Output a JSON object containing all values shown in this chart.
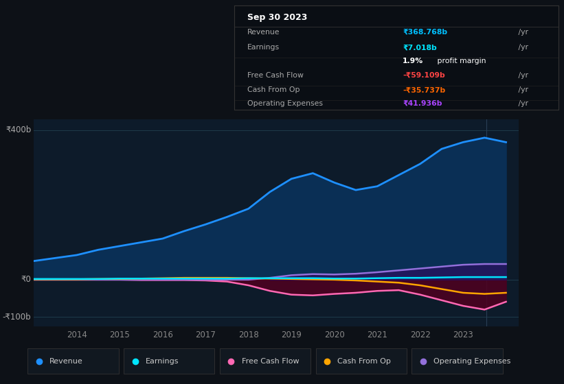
{
  "bg_color": "#0d1117",
  "plot_bg_color": "#0d1b2a",
  "title_box": {
    "date": "Sep 30 2023",
    "rows": [
      {
        "label": "Revenue",
        "value": "₹368.768b /yr",
        "value_color": "#00bfff"
      },
      {
        "label": "Earnings",
        "value": "₹7.018b /yr",
        "value_color": "#00e5ff"
      },
      {
        "label": "",
        "value": "1.9% profit margin",
        "value_color": "#ffffff"
      },
      {
        "label": "Free Cash Flow",
        "value": "-₹59.109b /yr",
        "value_color": "#ff4444"
      },
      {
        "label": "Cash From Op",
        "value": "-₹35.737b /yr",
        "value_color": "#ff6600"
      },
      {
        "label": "Operating Expenses",
        "value": "₹41.936b /yr",
        "value_color": "#aa44ff"
      }
    ]
  },
  "years": [
    2013.0,
    2013.5,
    2014.0,
    2014.5,
    2015.0,
    2015.5,
    2016.0,
    2016.5,
    2017.0,
    2017.5,
    2018.0,
    2018.5,
    2019.0,
    2019.5,
    2020.0,
    2020.5,
    2021.0,
    2021.5,
    2022.0,
    2022.5,
    2023.0,
    2023.5,
    2024.0
  ],
  "revenue": [
    50,
    58,
    66,
    80,
    90,
    100,
    110,
    130,
    148,
    168,
    190,
    235,
    270,
    285,
    260,
    240,
    250,
    280,
    310,
    350,
    368,
    380,
    368
  ],
  "earnings": [
    2,
    2,
    2,
    2,
    3,
    3,
    3,
    3,
    3,
    3,
    4,
    4,
    4,
    4,
    3,
    3,
    4,
    5,
    5,
    6,
    7,
    7,
    7
  ],
  "free_cash_flow": [
    0,
    0,
    0,
    0,
    0,
    -1,
    -1,
    -1,
    -2,
    -5,
    -15,
    -30,
    -40,
    -42,
    -38,
    -35,
    -30,
    -28,
    -40,
    -55,
    -70,
    -80,
    -59
  ],
  "cash_from_op": [
    1,
    1,
    1,
    2,
    2,
    3,
    4,
    5,
    5,
    5,
    4,
    3,
    2,
    1,
    0,
    -2,
    -5,
    -8,
    -15,
    -25,
    -35,
    -38,
    -35
  ],
  "operating_expenses": [
    0,
    0,
    0,
    0,
    0,
    0,
    0,
    0,
    0,
    0,
    0,
    5,
    12,
    15,
    14,
    16,
    20,
    25,
    30,
    35,
    40,
    42,
    42
  ],
  "ylim": [
    -125,
    430
  ],
  "xlim": [
    2013.0,
    2024.3
  ],
  "xtick_positions": [
    2014,
    2015,
    2016,
    2017,
    2018,
    2019,
    2020,
    2021,
    2022,
    2023
  ],
  "ytick_positions": [
    -100,
    0,
    400
  ],
  "ytick_labels": [
    "-₹100b",
    "₹0",
    "₹400b"
  ],
  "legend": [
    {
      "label": "Revenue",
      "color": "#1e90ff"
    },
    {
      "label": "Earnings",
      "color": "#00e5ff"
    },
    {
      "label": "Free Cash Flow",
      "color": "#ff69b4"
    },
    {
      "label": "Cash From Op",
      "color": "#ffa500"
    },
    {
      "label": "Operating Expenses",
      "color": "#9370db"
    }
  ],
  "revenue_line_color": "#1e90ff",
  "revenue_fill_color": "#0a2f55",
  "earnings_line_color": "#00e5ff",
  "fcf_line_color": "#ff69b4",
  "fcf_fill_color": "#500020",
  "cash_op_line_color": "#ffa500",
  "op_exp_line_color": "#9370db",
  "op_exp_fill_color": "#2a1060",
  "hline_color": "#1e3a4a",
  "vline_color": "#2a3f55",
  "xticklabel_color": "#888888",
  "ylabel_color": "#aaaaaa"
}
